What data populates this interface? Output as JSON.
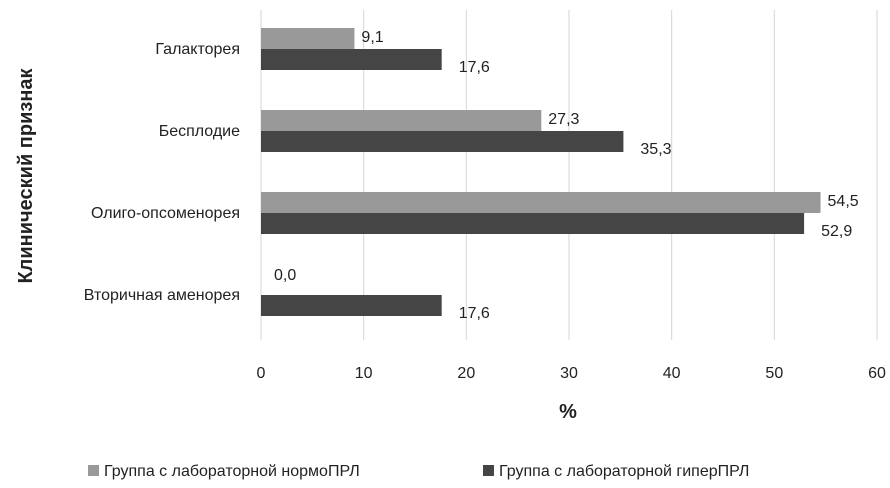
{
  "chart_data": {
    "type": "bar",
    "orientation": "horizontal",
    "title": "",
    "xlabel": "%",
    "ylabel": "Клинический признак",
    "xlim": [
      0,
      60
    ],
    "x_ticks": [
      0,
      10,
      20,
      30,
      40,
      50,
      60
    ],
    "grid": "vertical",
    "legend_position": "bottom",
    "categories": [
      "Галакторея",
      "Бесплодие",
      "Олиго-опсоменорея",
      "Вторичная аменорея"
    ],
    "series": [
      {
        "name": "Группа с лабораторной нормоПРЛ",
        "color": "#999999",
        "values": [
          9.1,
          27.3,
          54.5,
          0.0
        ],
        "labels": [
          "9,1",
          "27,3",
          "54,5",
          "0,0"
        ]
      },
      {
        "name": "Группа с лабораторной гиперПРЛ",
        "color": "#454545",
        "values": [
          17.6,
          35.3,
          52.9,
          17.6
        ],
        "labels": [
          "17,6",
          "35,3",
          "52,9",
          "17,6"
        ]
      }
    ]
  }
}
